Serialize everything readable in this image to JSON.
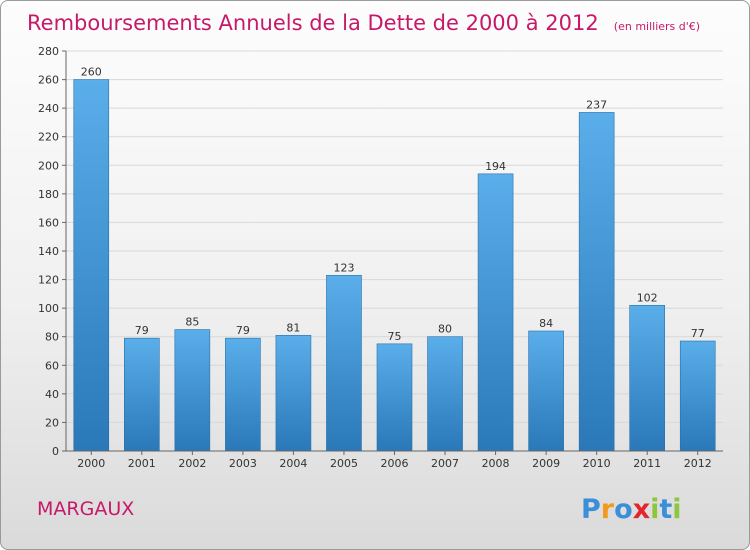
{
  "chart_data": {
    "type": "bar",
    "title": "Remboursements Annuels de la Dette de 2000 à 2012",
    "subtitle": "(en milliers d'€)",
    "categories": [
      "2000",
      "2001",
      "2002",
      "2003",
      "2004",
      "2005",
      "2006",
      "2007",
      "2008",
      "2009",
      "2010",
      "2011",
      "2012"
    ],
    "values": [
      260,
      79,
      85,
      79,
      81,
      123,
      75,
      80,
      194,
      84,
      237,
      102,
      77
    ],
    "ylim": [
      0,
      280
    ],
    "yticks": [
      0,
      20,
      40,
      60,
      80,
      100,
      120,
      140,
      160,
      180,
      200,
      220,
      240,
      260,
      280
    ],
    "grid": true,
    "bar_color_top": "#5aaeea",
    "bar_color_bottom": "#2a78b8"
  },
  "footer": {
    "city": "MARGAUX",
    "logo_letters": [
      "P",
      "r",
      "o",
      "x",
      "i",
      "t",
      "i"
    ],
    "logo_colors": [
      "#3a8fd8",
      "#f39a1e",
      "#3a8fd8",
      "#e3262d",
      "#8dc63f",
      "#3a8fd8",
      "#8dc63f"
    ]
  }
}
